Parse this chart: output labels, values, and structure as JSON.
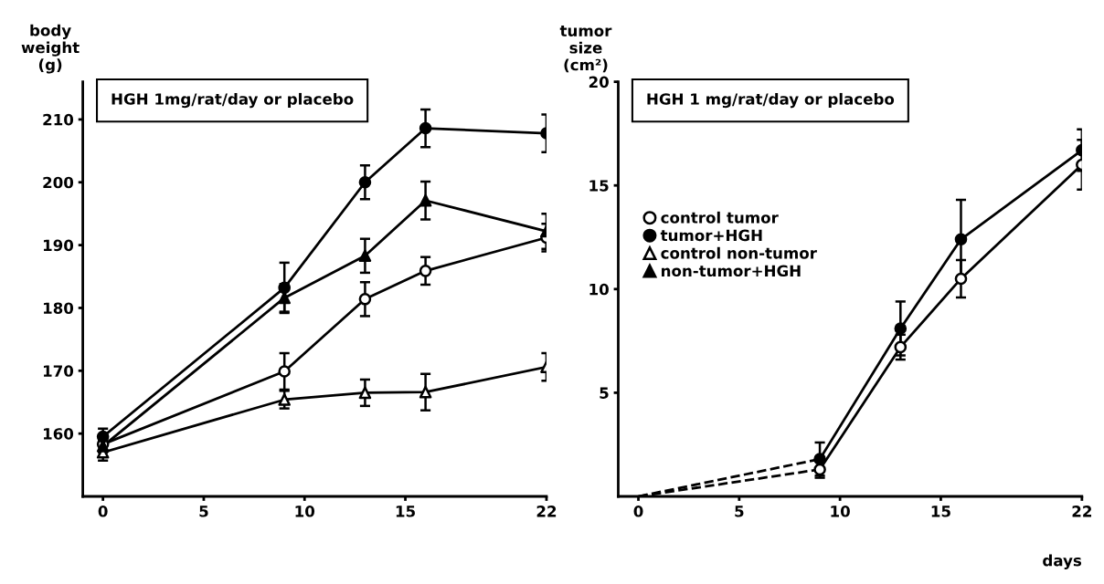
{
  "chart_data": [
    {
      "type": "line",
      "ylabel": "body\nweight\n(g)",
      "annotations": [
        "HGH 1mg/rat/day or placebo"
      ],
      "xlim": [
        -1,
        22
      ],
      "xticks": [
        0,
        5,
        10,
        15,
        22
      ],
      "ylim": [
        150,
        216
      ],
      "yticks": [
        160,
        170,
        180,
        190,
        200,
        210
      ],
      "grid": false,
      "legend": "right",
      "line_style": "solid",
      "series": [
        {
          "name": "control tumor",
          "color": "#000000",
          "colors": [
            "#ffffff",
            "#ffffff",
            "#ffffff",
            "#ffffff",
            "#ffffff"
          ],
          "marker": "circle",
          "x": [
            0,
            9,
            13,
            16,
            22
          ],
          "values": [
            158.3,
            169.9,
            181.4,
            185.9,
            191.2
          ],
          "errors": [
            1.0,
            2.9,
            2.7,
            2.2,
            2.2
          ]
        },
        {
          "name": "tumor+HGH",
          "color": "#000000",
          "marker": "circle",
          "x": [
            0,
            9,
            13,
            16,
            22
          ],
          "values": [
            159.5,
            183.2,
            200.0,
            208.6,
            207.8
          ],
          "errors": [
            1.3,
            4.0,
            2.7,
            3.0,
            3.0
          ]
        },
        {
          "name": "control non-tumor",
          "color": "#000000",
          "colors": [
            "#ffffff",
            "#ffffff",
            "#ffffff",
            "#ffffff",
            "#ffffff"
          ],
          "marker": "triangle",
          "x": [
            0,
            9,
            13,
            16,
            22
          ],
          "values": [
            157.0,
            165.4,
            166.5,
            166.6,
            170.6
          ],
          "errors": [
            1.3,
            1.4,
            2.1,
            2.9,
            2.2
          ]
        },
        {
          "name": "non-tumor+HGH",
          "color": "#000000",
          "marker": "triangle",
          "x": [
            0,
            9,
            13,
            16,
            22
          ],
          "values": [
            158.0,
            181.6,
            188.3,
            197.1,
            192.2
          ],
          "errors": [
            1.0,
            2.2,
            2.7,
            3.0,
            2.8
          ]
        }
      ]
    },
    {
      "type": "line",
      "ylabel": "tumor\nsize\n(cm²)",
      "xlabel": "days",
      "annotations": [
        "HGH 1 mg/rat/day or placebo"
      ],
      "xlim": [
        -1,
        22
      ],
      "xticks": [
        0,
        5,
        10,
        15,
        22
      ],
      "ylim": [
        0,
        20
      ],
      "yticks": [
        5,
        10,
        15,
        20
      ],
      "grid": false,
      "series": [
        {
          "color": "#000000",
          "line_style": "dashed",
          "x": [
            0,
            9
          ],
          "values": [
            0,
            1.3
          ]
        },
        {
          "color": "#000000",
          "line_style": "dashed",
          "x": [
            0,
            9
          ],
          "values": [
            0,
            1.8
          ]
        },
        {
          "color": "#000000",
          "colors": [
            "#ffffff",
            "#ffffff",
            "#ffffff",
            "#ffffff"
          ],
          "marker": "circle",
          "x": [
            9,
            13,
            16,
            22
          ],
          "values": [
            1.3,
            7.2,
            10.5,
            16.0
          ],
          "errors": [
            0.4,
            0.6,
            0.9,
            1.2
          ]
        },
        {
          "color": "#000000",
          "marker": "circle",
          "x": [
            9,
            13,
            16,
            22
          ],
          "values": [
            1.8,
            8.1,
            12.4,
            16.7
          ],
          "errors": [
            0.8,
            1.3,
            1.9,
            1.0
          ]
        }
      ]
    }
  ]
}
